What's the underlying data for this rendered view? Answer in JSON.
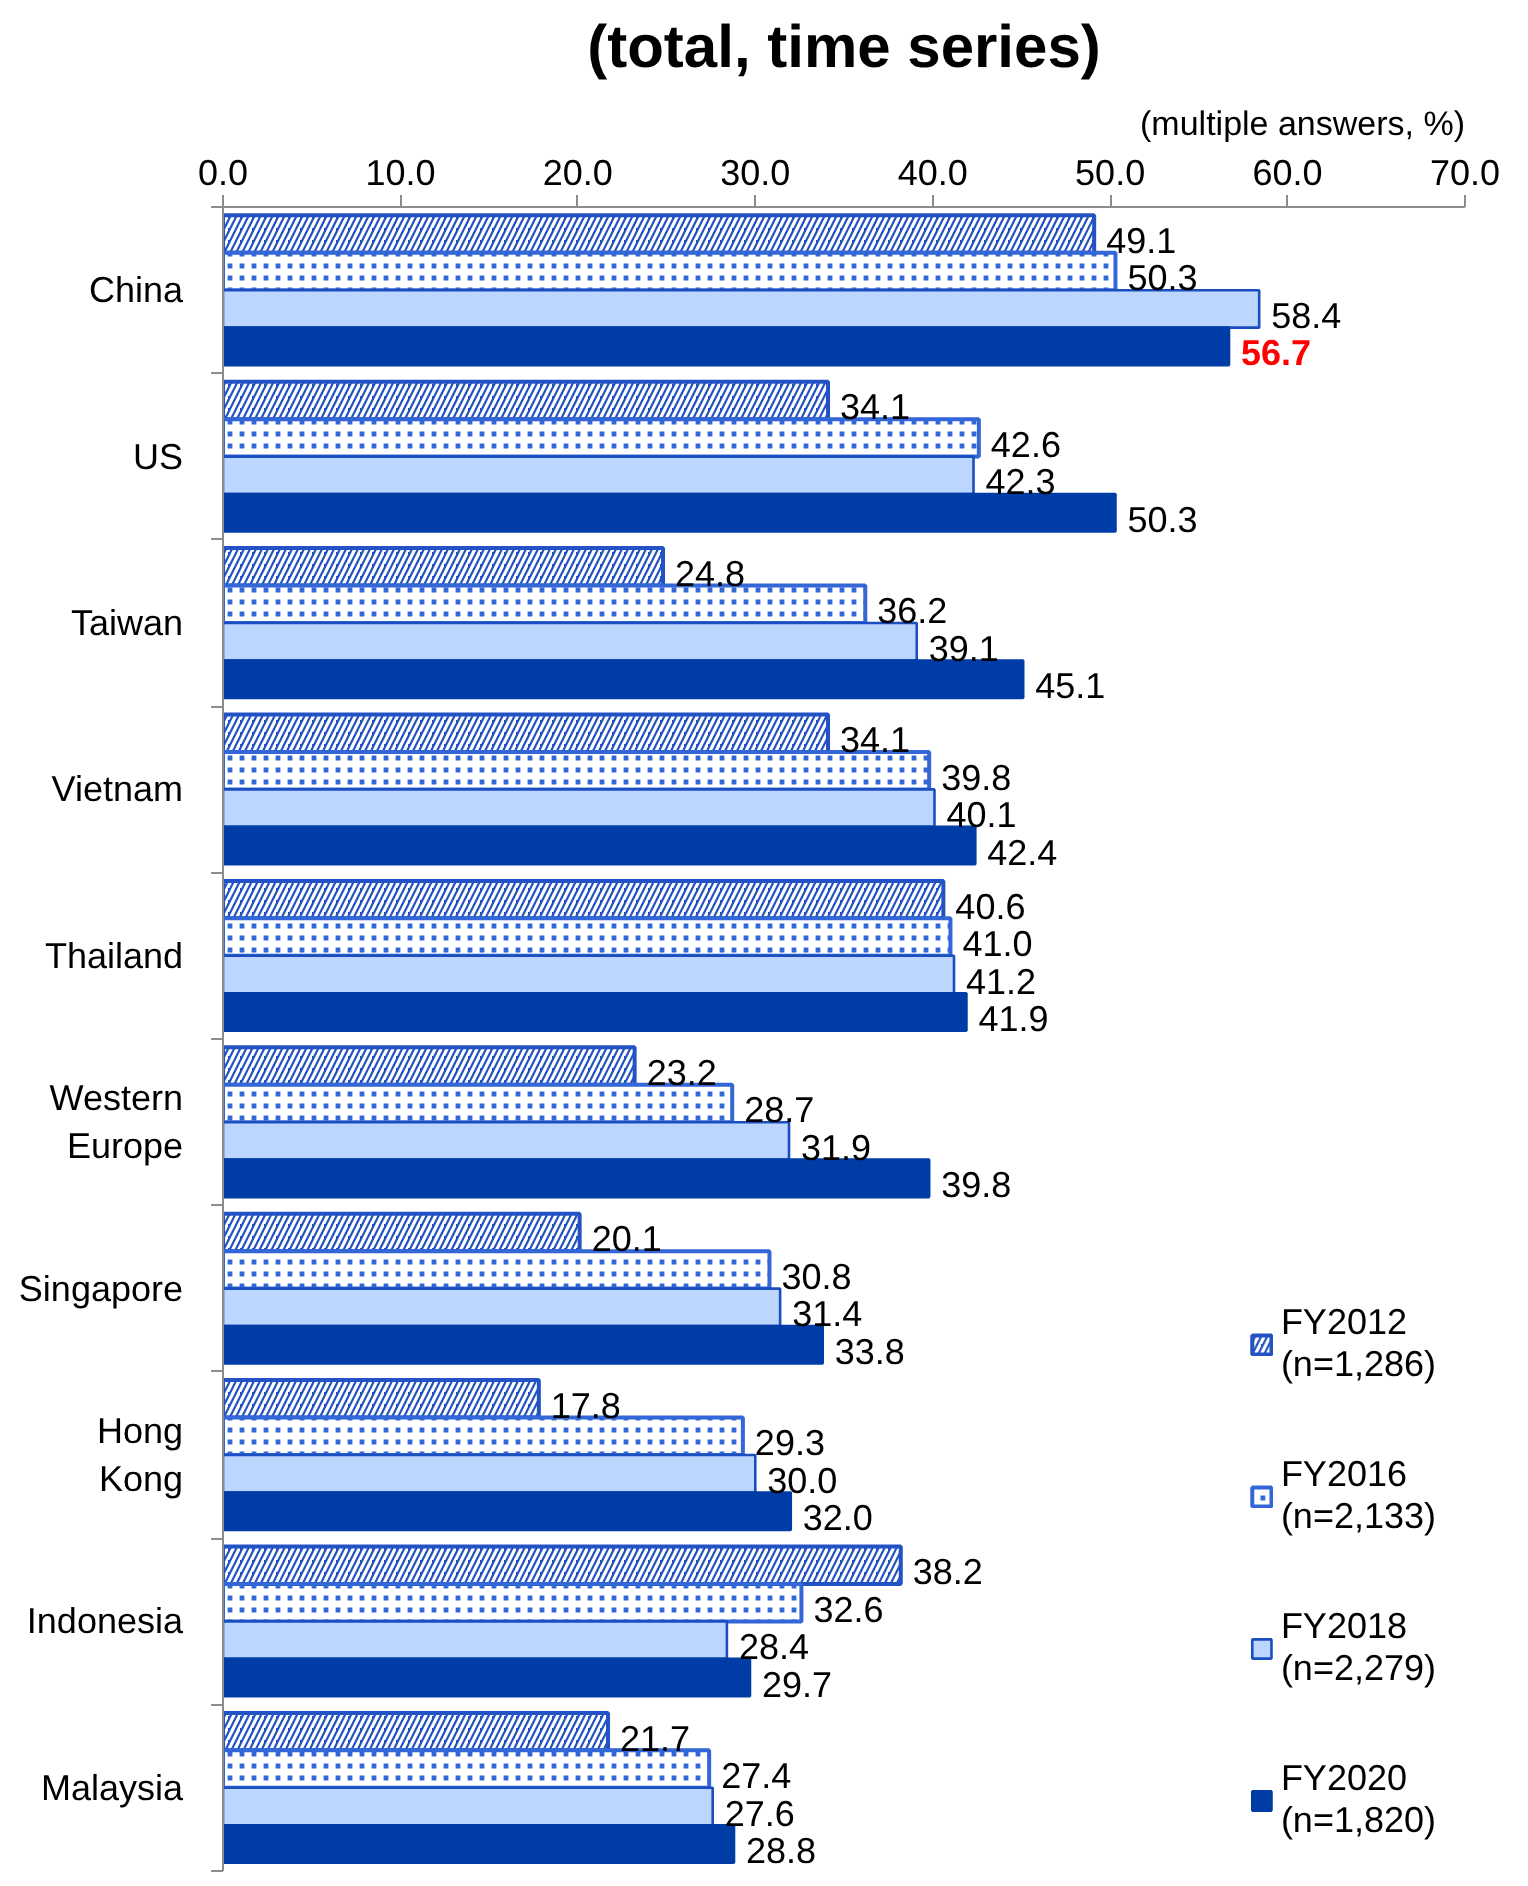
{
  "chart_data": {
    "type": "bar",
    "orientation": "horizontal",
    "title": "(total, time series)",
    "subtitle": "(multiple answers, %)",
    "categories": [
      "China",
      "US",
      "Taiwan",
      "Vietnam",
      "Thailand",
      "Western\nEurope",
      "Singapore",
      "Hong\nKong",
      "Indonesia",
      "Malaysia"
    ],
    "series": [
      {
        "name": "FY2012\n(n=1,286)",
        "color": "#2352c4",
        "values": [
          49.1,
          34.1,
          24.8,
          34.1,
          40.6,
          23.2,
          20.1,
          17.8,
          38.2,
          21.7
        ],
        "value_labels": [
          "49.1",
          "34.1",
          "24.8",
          "34.1",
          "40.6",
          "23.2",
          "20.1",
          "17.8",
          "38.2",
          "21.7"
        ]
      },
      {
        "name": "FY2016\n(n=2,133)",
        "color": "#3366d6",
        "values": [
          50.3,
          42.6,
          36.2,
          39.8,
          41.0,
          28.7,
          30.8,
          29.3,
          32.6,
          27.4
        ],
        "value_labels": [
          "50.3",
          "42.6",
          "36.2",
          "39.8",
          "41.0",
          "28.7",
          "30.8",
          "29.3",
          "32.6",
          "27.4"
        ]
      },
      {
        "name": "FY2018\n(n=2,279)",
        "color": "#bdd6ff",
        "values": [
          58.4,
          42.3,
          39.1,
          40.1,
          41.2,
          31.9,
          31.4,
          30.0,
          28.4,
          27.6
        ],
        "value_labels": [
          "58.4",
          "42.3",
          "39.1",
          "40.1",
          "41.2",
          "31.9",
          "31.4",
          "30.0",
          "28.4",
          "27.6"
        ]
      },
      {
        "name": "FY2020\n(n=1,820)",
        "color": "#003ca6",
        "values": [
          56.7,
          50.3,
          45.1,
          42.4,
          41.9,
          39.8,
          33.8,
          32.0,
          29.7,
          28.8
        ],
        "value_labels": [
          null,
          "50.3",
          "45.1",
          "42.4",
          "41.9",
          "39.8",
          "33.8",
          "32.0",
          "29.7",
          "28.8"
        ]
      }
    ],
    "xlim": [
      0,
      70
    ],
    "xticks": [
      {
        "value": 0,
        "label": "0.0"
      },
      {
        "value": 10,
        "label": "10.0"
      },
      {
        "value": 20,
        "label": "20.0"
      },
      {
        "value": 30,
        "label": "30.0"
      },
      {
        "value": 40,
        "label": "40.0"
      },
      {
        "value": 50,
        "label": "50.0"
      },
      {
        "value": 60,
        "label": "60.0"
      },
      {
        "value": 70,
        "label": "70.0"
      }
    ],
    "grid": false,
    "legend": "bottom right",
    "annotations": [
      {
        "text": "56.7",
        "x": 56.7,
        "y": "China"
      }
    ]
  }
}
